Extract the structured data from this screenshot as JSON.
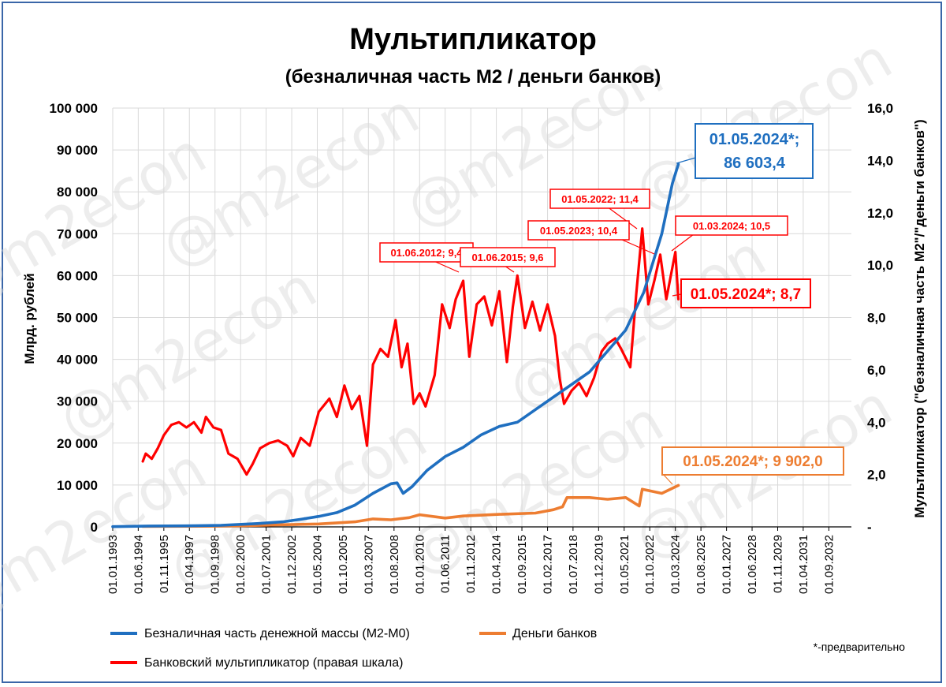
{
  "colors": {
    "m2": "#1f6fc0",
    "bank": "#ed7d31",
    "multiplier": "#ff0000",
    "frame": "#3a66a8",
    "grid": "#d9d9d9"
  },
  "watermark": "@m2econ",
  "chart_data": {
    "type": "line",
    "title": "Мультипликатор",
    "subtitle": "(безналичная часть М2 / деньги банков)",
    "ylabel": "Млрд. рублей",
    "y2label": "Мультипликатор (\"безналичная часть М2\"/\"деньги банков\")",
    "ylim": [
      0,
      100000
    ],
    "y2lim": [
      0,
      16
    ],
    "yticks": [
      "0",
      "10 000",
      "20 000",
      "30 000",
      "40 000",
      "50 000",
      "60 000",
      "70 000",
      "80 000",
      "90 000",
      "100 000"
    ],
    "y2ticks": [
      "-",
      "2,0",
      "4,0",
      "6,0",
      "8,0",
      "10,0",
      "12,0",
      "14,0",
      "16,0"
    ],
    "xlim": [
      "1993-01-01",
      "2033-12-01"
    ],
    "xticks": [
      "01.01.1993",
      "01.06.1994",
      "01.11.1995",
      "01.04.1997",
      "01.09.1998",
      "01.02.2000",
      "01.07.2001",
      "01.12.2002",
      "01.05.2004",
      "01.10.2005",
      "01.03.2007",
      "01.08.2008",
      "01.01.2010",
      "01.06.2011",
      "01.11.2012",
      "01.04.2014",
      "01.09.2015",
      "01.02.2017",
      "01.07.2018",
      "01.12.2019",
      "01.05.2021",
      "01.10.2022",
      "01.03.2024",
      "01.08.2025",
      "01.01.2027",
      "01.06.2028",
      "01.11.2029",
      "01.04.2031",
      "01.09.2032"
    ],
    "grid": true,
    "legend_position": "bottom",
    "series": [
      {
        "name": "Безналичная часть денежной массы (М2-М0)",
        "axis": "left",
        "color": "#1f6fc0",
        "points": [
          [
            "1993-01-01",
            60
          ],
          [
            "1995-01-01",
            200
          ],
          [
            "1997-01-01",
            250
          ],
          [
            "1999-01-01",
            380
          ],
          [
            "2001-01-01",
            800
          ],
          [
            "2002-06-01",
            1200
          ],
          [
            "2003-06-01",
            1800
          ],
          [
            "2004-06-01",
            2500
          ],
          [
            "2005-06-01",
            3400
          ],
          [
            "2006-06-01",
            5200
          ],
          [
            "2007-06-01",
            8000
          ],
          [
            "2008-06-01",
            10300
          ],
          [
            "2008-10-01",
            10500
          ],
          [
            "2009-02-01",
            8000
          ],
          [
            "2009-08-01",
            9600
          ],
          [
            "2010-06-01",
            13500
          ],
          [
            "2011-06-01",
            16800
          ],
          [
            "2012-06-01",
            19000
          ],
          [
            "2013-06-01",
            22000
          ],
          [
            "2014-06-01",
            24000
          ],
          [
            "2015-06-01",
            25000
          ],
          [
            "2016-06-01",
            28000
          ],
          [
            "2017-06-01",
            31000
          ],
          [
            "2018-06-01",
            34000
          ],
          [
            "2019-06-01",
            37000
          ],
          [
            "2020-06-01",
            42000
          ],
          [
            "2021-06-01",
            47000
          ],
          [
            "2022-06-01",
            56000
          ],
          [
            "2023-06-01",
            70000
          ],
          [
            "2024-01-01",
            82000
          ],
          [
            "2024-05-01",
            86603.4
          ]
        ]
      },
      {
        "name": "Деньги банков",
        "axis": "left",
        "color": "#ed7d31",
        "points": [
          [
            "1994-09-01",
            100
          ],
          [
            "1998-01-01",
            150
          ],
          [
            "2000-01-01",
            250
          ],
          [
            "2002-06-01",
            500
          ],
          [
            "2004-06-01",
            700
          ],
          [
            "2006-06-01",
            1200
          ],
          [
            "2007-06-01",
            1900
          ],
          [
            "2008-06-01",
            1700
          ],
          [
            "2009-06-01",
            2200
          ],
          [
            "2010-01-01",
            2900
          ],
          [
            "2011-06-01",
            2100
          ],
          [
            "2012-06-01",
            2600
          ],
          [
            "2014-06-01",
            3000
          ],
          [
            "2016-06-01",
            3300
          ],
          [
            "2017-06-01",
            4100
          ],
          [
            "2017-12-01",
            4800
          ],
          [
            "2018-03-01",
            7000
          ],
          [
            "2019-06-01",
            7000
          ],
          [
            "2020-06-01",
            6600
          ],
          [
            "2021-06-01",
            7000
          ],
          [
            "2022-03-01",
            5000
          ],
          [
            "2022-05-01",
            9000
          ],
          [
            "2023-06-01",
            8000
          ],
          [
            "2024-05-01",
            9902.0
          ]
        ]
      },
      {
        "name": "Банковский мультипликатор (правая шкала)",
        "axis": "right",
        "color": "#ff0000",
        "points": [
          [
            "1994-09-01",
            2.5
          ],
          [
            "1994-11-01",
            2.8
          ],
          [
            "1995-03-01",
            2.6
          ],
          [
            "1995-07-01",
            3.0
          ],
          [
            "1995-11-01",
            3.5
          ],
          [
            "1996-04-01",
            3.9
          ],
          [
            "1996-09-01",
            4.0
          ],
          [
            "1997-02-01",
            3.8
          ],
          [
            "1997-07-01",
            4.0
          ],
          [
            "1997-12-01",
            3.6
          ],
          [
            "1998-03-01",
            4.2
          ],
          [
            "1998-08-01",
            3.8
          ],
          [
            "1999-01-01",
            3.7
          ],
          [
            "1999-06-01",
            2.8
          ],
          [
            "1999-12-01",
            2.6
          ],
          [
            "2000-06-01",
            2.0
          ],
          [
            "2000-10-01",
            2.4
          ],
          [
            "2001-03-01",
            3.0
          ],
          [
            "2001-09-01",
            3.2
          ],
          [
            "2002-03-01",
            3.3
          ],
          [
            "2002-09-01",
            3.1
          ],
          [
            "2003-01-01",
            2.7
          ],
          [
            "2003-06-01",
            3.4
          ],
          [
            "2003-12-01",
            3.1
          ],
          [
            "2004-06-01",
            4.4
          ],
          [
            "2005-01-01",
            4.9
          ],
          [
            "2005-06-01",
            4.2
          ],
          [
            "2005-11-01",
            5.4
          ],
          [
            "2006-04-01",
            4.5
          ],
          [
            "2006-09-01",
            5.0
          ],
          [
            "2007-02-01",
            3.1
          ],
          [
            "2007-06-01",
            6.2
          ],
          [
            "2007-11-01",
            6.8
          ],
          [
            "2008-04-01",
            6.5
          ],
          [
            "2008-09-01",
            7.9
          ],
          [
            "2009-01-01",
            6.1
          ],
          [
            "2009-05-01",
            7.0
          ],
          [
            "2009-09-01",
            4.7
          ],
          [
            "2010-01-01",
            5.1
          ],
          [
            "2010-05-01",
            4.6
          ],
          [
            "2010-11-01",
            5.8
          ],
          [
            "2011-04-01",
            8.5
          ],
          [
            "2011-09-01",
            7.6
          ],
          [
            "2012-01-01",
            8.7
          ],
          [
            "2012-06-01",
            9.4
          ],
          [
            "2012-10-01",
            6.5
          ],
          [
            "2013-03-01",
            8.5
          ],
          [
            "2013-08-01",
            8.8
          ],
          [
            "2014-01-01",
            7.7
          ],
          [
            "2014-06-01",
            9.0
          ],
          [
            "2014-11-01",
            6.3
          ],
          [
            "2015-03-01",
            8.4
          ],
          [
            "2015-06-01",
            9.6
          ],
          [
            "2015-11-01",
            7.6
          ],
          [
            "2016-04-01",
            8.6
          ],
          [
            "2016-09-01",
            7.5
          ],
          [
            "2017-02-01",
            8.5
          ],
          [
            "2017-07-01",
            7.3
          ],
          [
            "2017-10-01",
            5.7
          ],
          [
            "2018-01-01",
            4.7
          ],
          [
            "2018-06-01",
            5.2
          ],
          [
            "2018-11-01",
            5.5
          ],
          [
            "2019-04-01",
            5.0
          ],
          [
            "2019-09-01",
            5.7
          ],
          [
            "2020-02-01",
            6.7
          ],
          [
            "2020-06-01",
            7.0
          ],
          [
            "2020-11-01",
            7.2
          ],
          [
            "2021-03-01",
            6.8
          ],
          [
            "2021-09-01",
            6.1
          ],
          [
            "2022-01-01",
            8.9
          ],
          [
            "2022-05-01",
            11.4
          ],
          [
            "2022-09-01",
            8.5
          ],
          [
            "2023-01-01",
            9.4
          ],
          [
            "2023-05-01",
            10.4
          ],
          [
            "2023-09-01",
            8.7
          ],
          [
            "2024-03-01",
            10.5
          ],
          [
            "2024-05-01",
            8.7
          ]
        ]
      }
    ],
    "annotations": [
      {
        "text": "01.06.2012;  9,4",
        "series": "multiplier"
      },
      {
        "text": "01.06.2015;  9,6",
        "series": "multiplier"
      },
      {
        "text": "01.05.2022;  11,4",
        "series": "multiplier"
      },
      {
        "text": "01.05.2023;  10,4",
        "series": "multiplier"
      },
      {
        "text": "01.03.2024;  10,5",
        "series": "multiplier"
      },
      {
        "text": "01.05.2024*;   8,7",
        "series": "multiplier"
      },
      {
        "text": "01.05.2024*;",
        "text2": "86 603,4",
        "series": "m2"
      },
      {
        "text": "01.05.2024*;  9 902,0",
        "series": "bank"
      }
    ],
    "footnote": "*-предварительно"
  }
}
